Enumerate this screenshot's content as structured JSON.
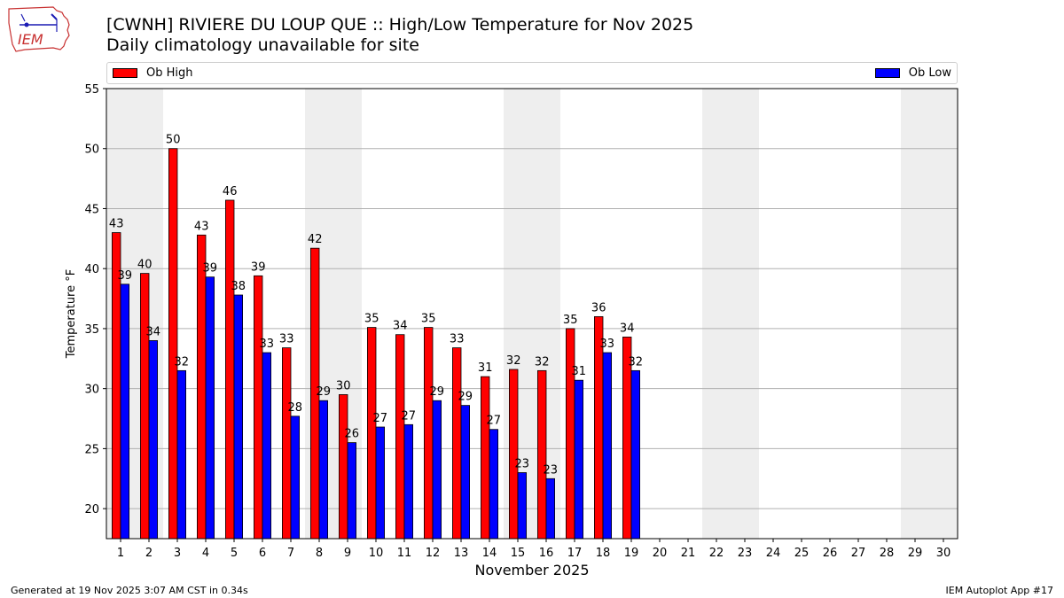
{
  "header": {
    "title": "[CWNH] RIVIERE DU LOUP  QUE :: High/Low Temperature for Nov 2025",
    "subtitle": "Daily climatology unavailable for site",
    "logo_text": "IEM"
  },
  "legend": {
    "high_label": "Ob High",
    "low_label": "Ob Low",
    "placement": "top, spanning the plot width"
  },
  "footer": {
    "left": "Generated at 19 Nov 2025 3:07 AM CST in 0.34s",
    "right": "IEM Autoplot App #17"
  },
  "colors": {
    "high": "#ff0000",
    "low": "#0000ff",
    "weekend_shade": "#eeeeee",
    "grid": "#b0b0b0"
  },
  "chart_data": {
    "type": "bar",
    "title": "[CWNH] RIVIERE DU LOUP  QUE :: High/Low Temperature for Nov 2025",
    "subtitle": "Daily climatology unavailable for site",
    "xlabel": "November 2025",
    "ylabel": "Temperature °F",
    "categories": [
      "1",
      "2",
      "3",
      "4",
      "5",
      "6",
      "7",
      "8",
      "9",
      "10",
      "11",
      "12",
      "13",
      "14",
      "15",
      "16",
      "17",
      "18",
      "19",
      "20",
      "21",
      "22",
      "23",
      "24",
      "25",
      "26",
      "27",
      "28",
      "29",
      "30"
    ],
    "ylim": [
      17.5,
      55
    ],
    "yticks": [
      20,
      25,
      30,
      35,
      40,
      45,
      50,
      55
    ],
    "grid": "horizontal",
    "shaded_days": [
      1,
      2,
      8,
      9,
      15,
      16,
      22,
      23,
      29,
      30
    ],
    "series": [
      {
        "name": "Ob High",
        "color": "#ff0000",
        "values": [
          43.0,
          39.6,
          50.0,
          42.8,
          45.7,
          39.4,
          33.4,
          41.7,
          29.5,
          35.1,
          34.5,
          35.1,
          33.4,
          31.0,
          31.6,
          31.5,
          35.0,
          36.0,
          34.3,
          null,
          null,
          null,
          null,
          null,
          null,
          null,
          null,
          null,
          null,
          null
        ],
        "labels": [
          "43",
          "40",
          "50",
          "43",
          "46",
          "39",
          "33",
          "42",
          "30",
          "35",
          "34",
          "35",
          "33",
          "31",
          "32",
          "32",
          "35",
          "36",
          "34",
          "",
          "",
          "",
          "",
          "",
          "",
          "",
          "",
          "",
          "",
          ""
        ]
      },
      {
        "name": "Ob Low",
        "color": "#0000ff",
        "values": [
          38.7,
          34.0,
          31.5,
          39.3,
          37.8,
          33.0,
          27.7,
          29.0,
          25.5,
          26.8,
          27.0,
          29.0,
          28.6,
          26.6,
          23.0,
          22.5,
          30.7,
          33.0,
          31.5,
          null,
          null,
          null,
          null,
          null,
          null,
          null,
          null,
          null,
          null,
          null
        ],
        "labels": [
          "39",
          "34",
          "32",
          "39",
          "38",
          "33",
          "28",
          "29",
          "26",
          "27",
          "27",
          "29",
          "29",
          "27",
          "23",
          "23",
          "31",
          "33",
          "32",
          "",
          "",
          "",
          "",
          "",
          "",
          "",
          "",
          "",
          "",
          ""
        ]
      }
    ]
  }
}
